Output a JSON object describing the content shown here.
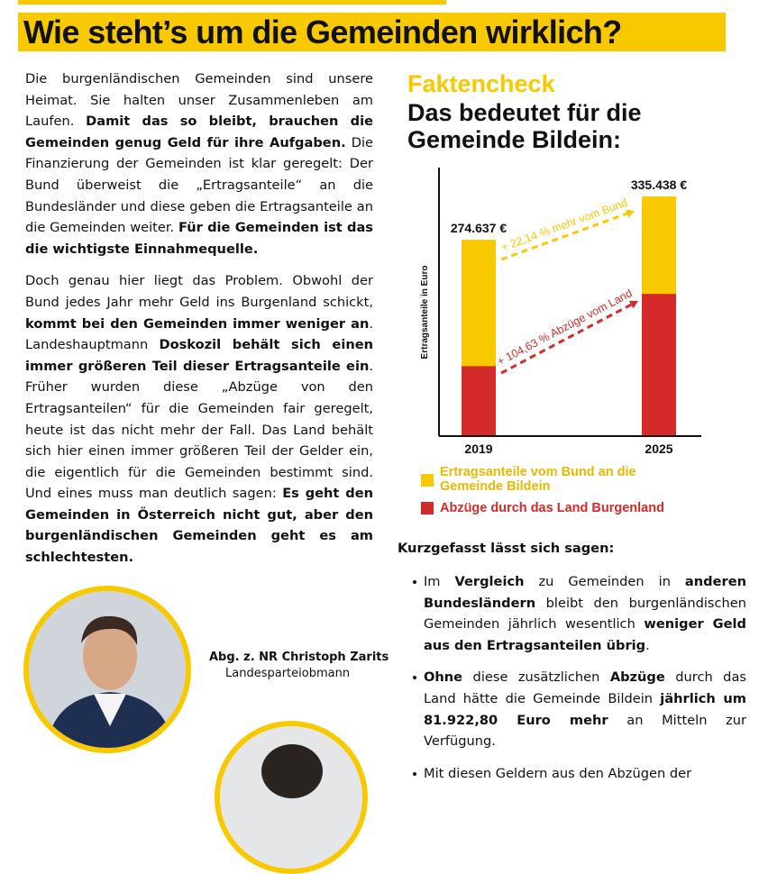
{
  "header": {
    "title": "Wie steht’s um die Gemeinden wirklich?"
  },
  "left_text": [
    [
      {
        "text": "Die burgenländischen Gemeinden sind unsere Heimat. Sie halten unser Zusammenleben am Laufen. ",
        "bold": false
      },
      {
        "text": "Damit das so bleibt, brauchen die Gemeinden genug Geld für ihre Aufgaben.",
        "bold": true
      },
      {
        "text": " Die Finanzierung der Gemeinden ist klar geregelt: Der Bund überweist die „Ertragsanteile“ an die Bundesländer und diese geben die Ertragsanteile an die Gemeinden weiter. ",
        "bold": false
      },
      {
        "text": "Für die Gemeinden ist das die wichtigste Einnahmequelle.",
        "bold": true
      }
    ],
    [
      {
        "text": "Doch genau hier liegt das Problem. Obwohl der Bund jedes Jahr mehr Geld ins Burgenland schickt, ",
        "bold": false
      },
      {
        "text": "kommt bei den Gemeinden immer weniger an",
        "bold": true
      },
      {
        "text": ". Landeshauptmann ",
        "bold": false
      },
      {
        "text": "Doskozil behält sich einen immer größeren Teil dieser Ertragsanteile ein",
        "bold": true
      },
      {
        "text": ". Früher wurden diese „Abzüge von den Ertragsanteilen“ für die Gemeinden fair geregelt, heute ist das nicht mehr der Fall. Das Land behält sich hier einen immer größeren Teil der Gelder ein, die eigentlich für die Gemeinden bestimmt sind. Und eines muss man deutlich sagen: ",
        "bold": false
      },
      {
        "text": "Es geht den Gemeinden in Österreich nicht gut, aber den burgenländischen Gemeinden geht es am schlechtesten.",
        "bold": true
      }
    ]
  ],
  "person": {
    "name": "Abg. z. NR Christoph Zarits",
    "role": "Landesparteiobmann"
  },
  "fact_label": "Faktencheck",
  "fact_heading": "Das bedeutet für die Gemeinde Bildein:",
  "chart_data": {
    "type": "bar",
    "stacked": false,
    "y_label": "Ertragsanteile in Euro",
    "categories": [
      "2019",
      "2025"
    ],
    "series": [
      {
        "name": "Ertragsanteile vom Bund an die Gemeinde Bildein",
        "color": "#f9c900",
        "values": [
          274637,
          335438
        ],
        "value_labels": [
          "274.637 €",
          "335.438 €"
        ]
      },
      {
        "name": "Abzüge durch das Land Burgenland",
        "color": "#d42a2a",
        "values": [
          97000,
          198500
        ]
      }
    ],
    "ylim": [
      0,
      376000
    ],
    "annotations": [
      {
        "text": "+ 22,14 % mehr vom Bund",
        "color": "#f9c900"
      },
      {
        "text": "+ 104,63 % Abzüge vom Land",
        "color": "#d42a2a"
      }
    ]
  },
  "summary_heading": "Kurzgefasst lässt sich sagen:",
  "bullets": [
    [
      {
        "text": "Im ",
        "bold": false
      },
      {
        "text": "Vergleich",
        "bold": true
      },
      {
        "text": " zu Gemeinden in ",
        "bold": false
      },
      {
        "text": "anderen Bundesländern",
        "bold": true
      },
      {
        "text": " bleibt den burgenländischen Gemeinden jährlich wesentlich ",
        "bold": false
      },
      {
        "text": "weniger Geld aus den Ertragsanteilen übrig",
        "bold": true
      },
      {
        "text": ".",
        "bold": false
      }
    ],
    [
      {
        "text": "Ohne",
        "bold": true
      },
      {
        "text": " diese zusätzlichen ",
        "bold": false
      },
      {
        "text": "Abzüge",
        "bold": true
      },
      {
        "text": " durch das Land hätte die Gemeinde Bildein ",
        "bold": false
      },
      {
        "text": "jährlich um 81.922,80 Euro mehr",
        "bold": true
      },
      {
        "text": " an Mitteln zur Verfügung.",
        "bold": false
      }
    ],
    [
      {
        "text": "Mit diesen Geldern aus den Abzügen der",
        "bold": false
      }
    ]
  ]
}
